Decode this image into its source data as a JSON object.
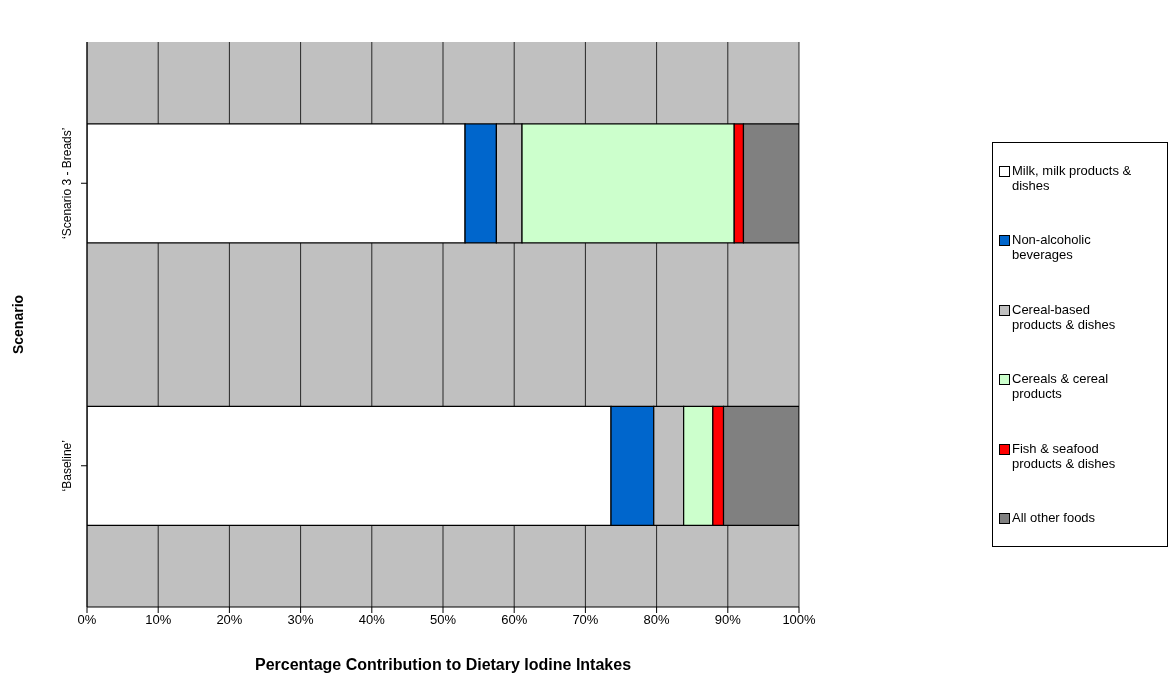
{
  "chart_data": {
    "type": "bar",
    "orientation": "horizontal",
    "stacked": true,
    "xlabel": "Percentage Contribution to Dietary Iodine Intakes",
    "ylabel": "Scenario",
    "categories": [
      "‘Scenario 3 - Breads’",
      "‘Baseline’"
    ],
    "series": [
      {
        "name": "Milk, milk products & dishes",
        "color": "#ffffff",
        "values": [
          53.1,
          73.6
        ]
      },
      {
        "name": "Non-alcoholic beverages",
        "color": "#0066cc",
        "values": [
          4.4,
          6.0
        ]
      },
      {
        "name": "Cereal-based products & dishes",
        "color": "#c0c0c0",
        "values": [
          3.6,
          4.2
        ]
      },
      {
        "name": "Cereals & cereal products",
        "color": "#ccffcc",
        "values": [
          29.8,
          4.1
        ]
      },
      {
        "name": "Fish & seafood products & dishes",
        "color": "#ff0000",
        "values": [
          1.3,
          1.5
        ]
      },
      {
        "name": "All other foods",
        "color": "#808080",
        "values": [
          7.8,
          10.6
        ]
      }
    ],
    "xlim": [
      0,
      100
    ],
    "xticks": [
      {
        "value": 0,
        "label": "0%"
      },
      {
        "value": 10,
        "label": "10%"
      },
      {
        "value": 20,
        "label": "20%"
      },
      {
        "value": 30,
        "label": "30%"
      },
      {
        "value": 40,
        "label": "40%"
      },
      {
        "value": 50,
        "label": "50%"
      },
      {
        "value": 60,
        "label": "60%"
      },
      {
        "value": 70,
        "label": "70%"
      },
      {
        "value": 80,
        "label": "80%"
      },
      {
        "value": 90,
        "label": "90%"
      },
      {
        "value": 100,
        "label": "100%"
      }
    ],
    "grid": "x",
    "legend": "right"
  }
}
